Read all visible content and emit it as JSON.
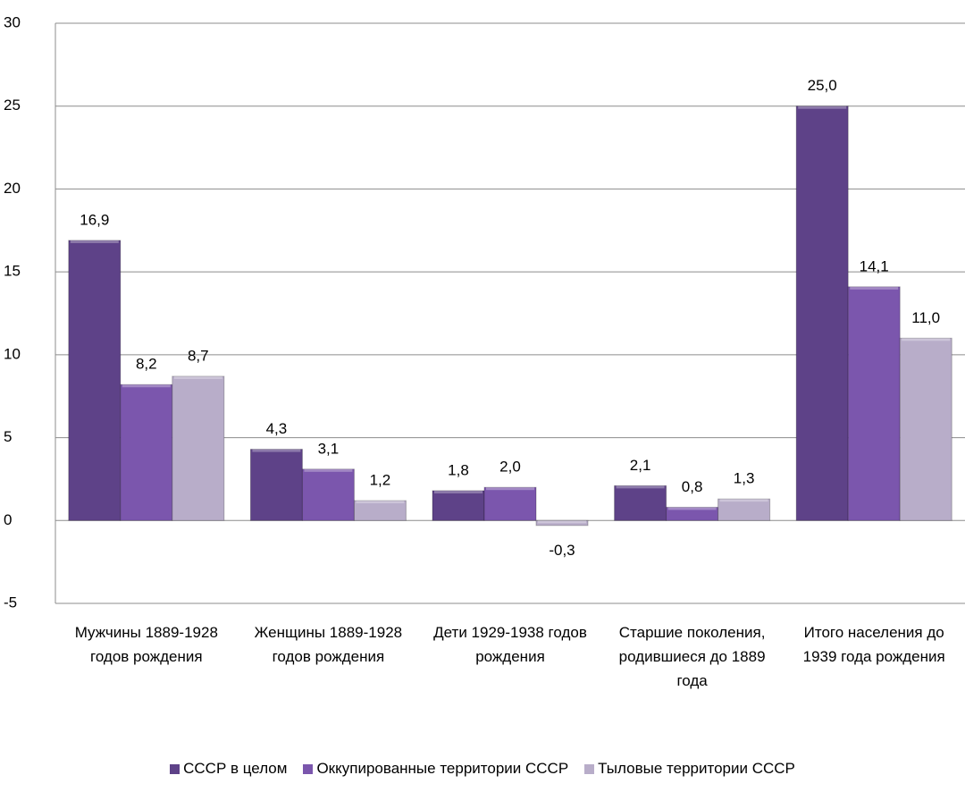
{
  "chart_data": {
    "type": "bar",
    "categories": [
      "Мужчины 1889-1928 годов рождения",
      "Женщины 1889-1928 годов рождения",
      "Дети 1929-1938 годов рождения",
      "Старшие поколения, родившиеся до 1889 года",
      "Итого населения до 1939 года рождения"
    ],
    "series": [
      {
        "name": "СССР в целом",
        "color": "#5e4288",
        "values": [
          16.9,
          4.3,
          1.8,
          2.1,
          25.0
        ],
        "value_labels": [
          "16,9",
          "4,3",
          "1,8",
          "2,1",
          "25,0"
        ]
      },
      {
        "name": "Оккупированные территории СССР",
        "color": "#7b56ad",
        "values": [
          8.2,
          3.1,
          2.0,
          0.8,
          14.1
        ],
        "value_labels": [
          "8,2",
          "3,1",
          "2,0",
          "0,8",
          "14,1"
        ]
      },
      {
        "name": "Тыловые территории СССР",
        "color": "#b8adc9",
        "values": [
          8.7,
          1.2,
          -0.3,
          1.3,
          11.0
        ],
        "value_labels": [
          "8,7",
          "1,2",
          "-0,3",
          "1,3",
          "11,0"
        ]
      }
    ],
    "ylim": [
      -5,
      30
    ],
    "yticks": [
      -5,
      0,
      5,
      10,
      15,
      20,
      25,
      30
    ],
    "grid": true,
    "legend": "bottom"
  }
}
